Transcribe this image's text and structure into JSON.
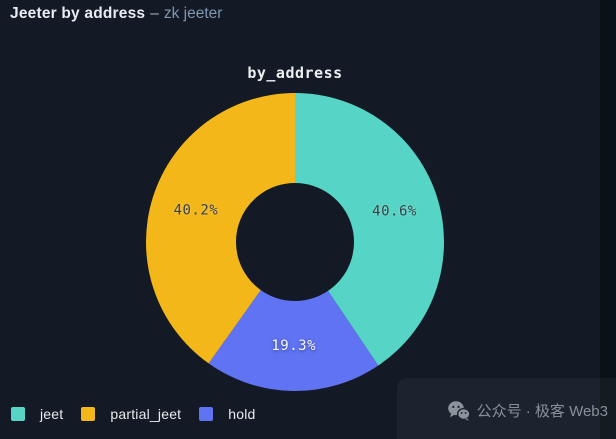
{
  "page": {
    "background": "#131a25",
    "right_edge_strip_color": "#0b1119"
  },
  "header": {
    "title": "Jeeter by address",
    "separator": "–",
    "subtitle": "zk jeeter",
    "subtitle_color": "#8096b0"
  },
  "chart_data": {
    "type": "pie",
    "subtype": "donut",
    "title": "by_address",
    "start_angle": "top",
    "direction": "clockwise",
    "categories": [
      "jeet",
      "partial_jeet",
      "hold"
    ],
    "values": [
      40.6,
      40.2,
      19.3
    ],
    "slices": [
      {
        "name": "jeet",
        "value": 40.6,
        "label": "40.6%",
        "color": "#56d4c5",
        "label_color": "#3a4147"
      },
      {
        "name": "hold",
        "value": 19.3,
        "label": "19.3%",
        "color": "#5f73f3",
        "label_color": "#f6f7f9"
      },
      {
        "name": "partial_jeet",
        "value": 40.2,
        "label": "40.2%",
        "color": "#f3b71a",
        "label_color": "#3a4147"
      }
    ],
    "legend_position": "bottom-left",
    "grid": false
  },
  "legend": {
    "items": [
      {
        "label": "jeet",
        "color": "#56d4c5"
      },
      {
        "label": "partial_jeet",
        "color": "#f3b71a"
      },
      {
        "label": "hold",
        "color": "#5f73f3"
      }
    ]
  },
  "watermark": {
    "icon": "wechat-icon",
    "text": "公众号 · 极客 Web3",
    "text_color": "#8a9099"
  }
}
